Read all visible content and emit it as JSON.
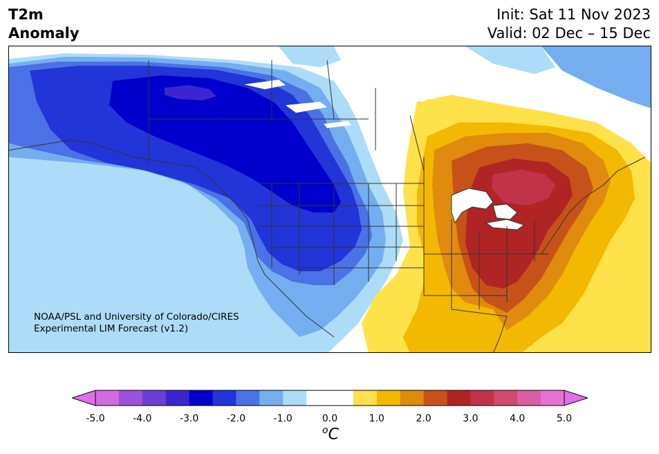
{
  "title": {
    "line1": "T2m",
    "line2": "Anomaly"
  },
  "dates": {
    "init": "Init: Sat 11 Nov 2023",
    "valid": "Valid: 02 Dec – 15 Dec"
  },
  "credit": {
    "line1": "NOAA/PSL and University of Colorado/CIRES",
    "line2": "Experimental LIM Forecast (v1.2)"
  },
  "colorbar": {
    "unit_base": "C",
    "unit_sup": "o",
    "ticks": [
      "-5.0",
      "-4.0",
      "-3.0",
      "-2.0",
      "-1.0",
      "0.0",
      "1.0",
      "2.0",
      "3.0",
      "4.0",
      "5.0"
    ],
    "colors": [
      "#d36be0",
      "#9b52da",
      "#6a3fd6",
      "#3d26cf",
      "#0000cd",
      "#2235d8",
      "#4a72e6",
      "#75aef0",
      "#acdcf7",
      "#ffffff",
      "#ffffff",
      "#ffe24a",
      "#f3b800",
      "#e08a0e",
      "#c6521a",
      "#b02424",
      "#c23348",
      "#cf4a6f",
      "#da60a2",
      "#e872d4"
    ],
    "under_color": "#e070e8",
    "over_color": "#e070e8"
  },
  "map_colors": {
    "land": "#ffffff",
    "cold_1": "#acdcf7",
    "cold_2": "#75aef0",
    "cold_3": "#4a72e6",
    "cold_4": "#2235d8",
    "cold_5": "#0000cd",
    "cold_6": "#3d26cf",
    "warm_1": "#ffe24a",
    "warm_2": "#f3b800",
    "warm_3": "#e08a0e",
    "warm_4": "#c6521a",
    "warm_5": "#b02424",
    "warm_6": "#c23348",
    "outline": "#333333"
  }
}
